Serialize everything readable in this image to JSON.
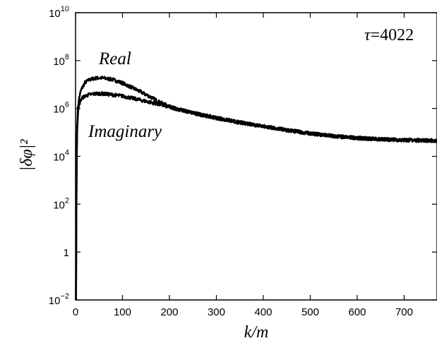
{
  "chart_data": {
    "type": "line",
    "title": "",
    "xlabel": "k/m",
    "ylabel": "|δφ|²",
    "y_scale": "log",
    "xlim": [
      0,
      770
    ],
    "ylim": [
      0.01,
      10000000000
    ],
    "grid": false,
    "x_ticks": [
      0,
      100,
      200,
      300,
      400,
      500,
      600,
      700
    ],
    "y_ticks": [
      {
        "value": 0.01,
        "base": "10",
        "exp": "−2"
      },
      {
        "value": 1,
        "base": "1",
        "exp": ""
      },
      {
        "value": 100,
        "base": "10",
        "exp": "2"
      },
      {
        "value": 10000,
        "base": "10",
        "exp": "4"
      },
      {
        "value": 1000000,
        "base": "10",
        "exp": "6"
      },
      {
        "value": 100000000,
        "base": "10",
        "exp": "8"
      },
      {
        "value": 10000000000,
        "base": "10",
        "exp": "10"
      }
    ],
    "annotations": {
      "tau_symbol": "τ",
      "tau_value": "=4022",
      "real_label": "Real",
      "imaginary_label": "Imaginary"
    },
    "series": [
      {
        "id": "real",
        "color": "#000000",
        "x": [
          1,
          2,
          3,
          5,
          8,
          12,
          20,
          30,
          40,
          50,
          60,
          80,
          100,
          120,
          140,
          160,
          180,
          200,
          220,
          250,
          300,
          350,
          400,
          450,
          500,
          550,
          600,
          650,
          700,
          770
        ],
        "y": [
          0.01,
          1000,
          100000,
          1000000,
          3000000,
          6000000,
          12000000,
          16000000,
          18000000,
          19000000,
          18500000,
          16000000,
          11500000,
          7500000,
          4800000,
          3000000,
          1800000,
          1200000,
          900000,
          650000,
          400000,
          260000,
          180000,
          125000,
          90000,
          70000,
          58000,
          52000,
          48000,
          45000
        ]
      },
      {
        "id": "imaginary",
        "color": "#000000",
        "x": [
          1,
          2,
          3,
          5,
          8,
          12,
          20,
          30,
          40,
          50,
          60,
          80,
          100,
          120,
          140,
          160,
          180,
          200,
          220,
          250,
          300,
          350,
          400,
          450,
          500,
          550,
          600,
          650,
          700,
          770
        ],
        "y": [
          0.01,
          800,
          80000,
          600000,
          1500000,
          2500000,
          3300000,
          3800000,
          4100000,
          4200000,
          4100000,
          3700000,
          3300000,
          2700000,
          2200000,
          1800000,
          1450000,
          1150000,
          900000,
          650000,
          400000,
          260000,
          180000,
          125000,
          90000,
          70000,
          58000,
          52000,
          48000,
          45000
        ]
      }
    ]
  }
}
